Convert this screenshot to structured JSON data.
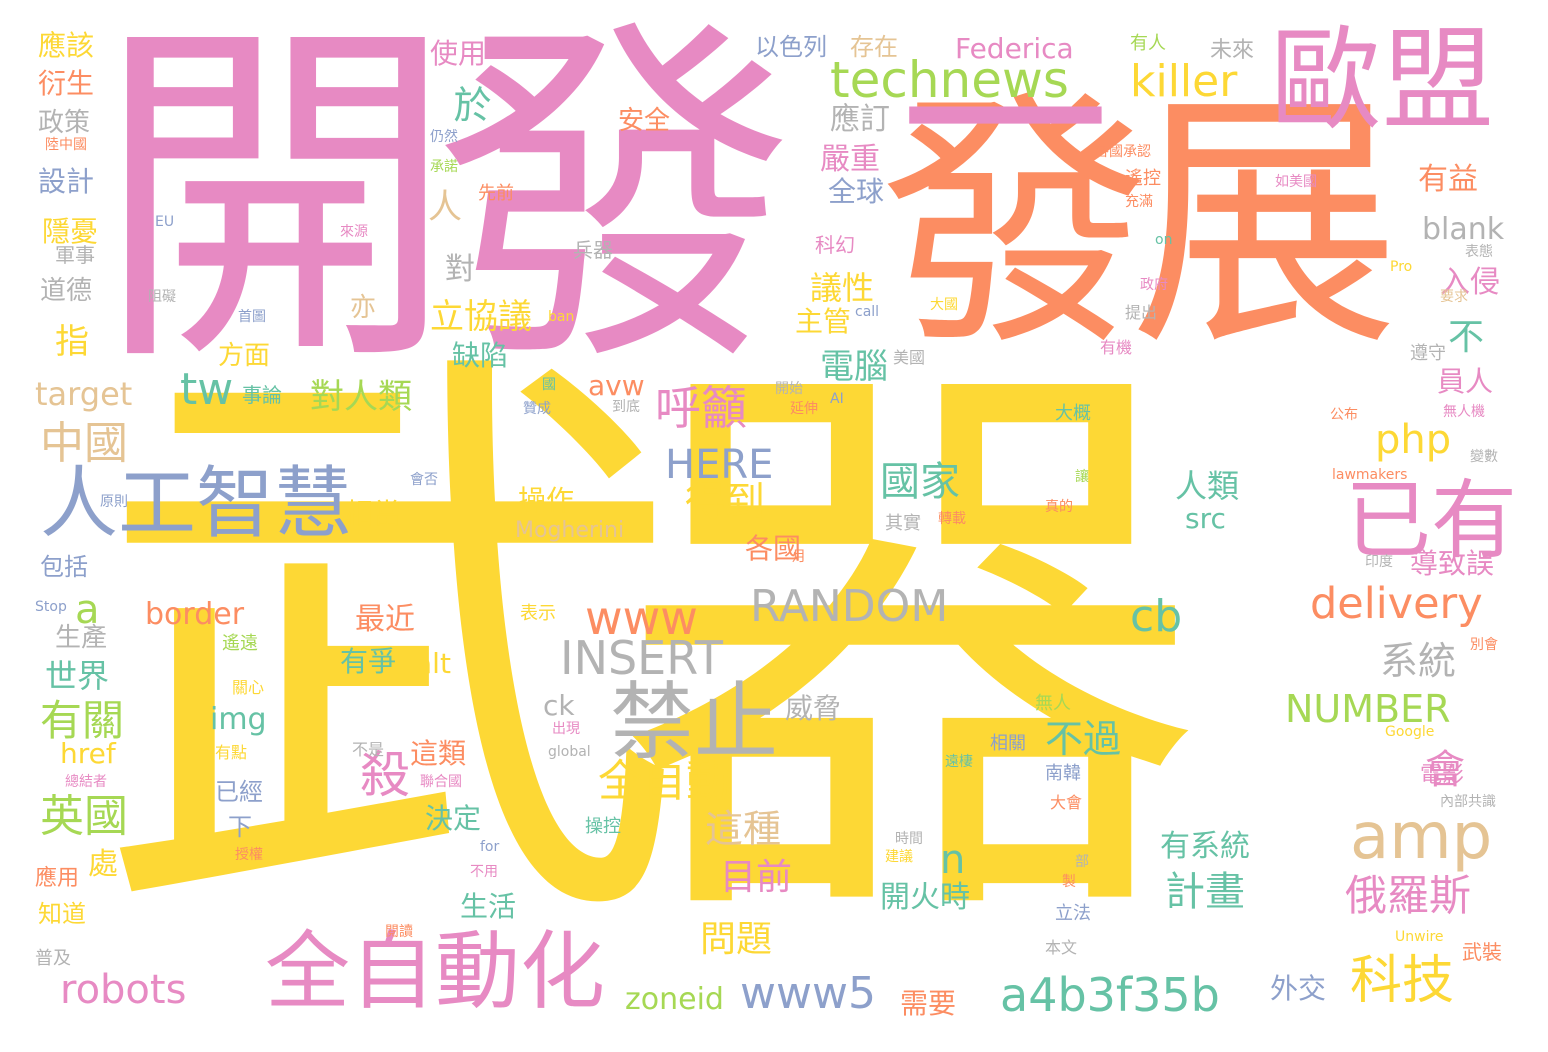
{
  "palette": {
    "yellow": "#fdd835",
    "pink": "#e78ac3",
    "orange": "#fc8d62",
    "green": "#a6d854",
    "teal": "#66c2a5",
    "blue": "#8da0cb",
    "tan": "#e5c494",
    "gray": "#b3b3b3"
  },
  "words": [
    {
      "text": "武器",
      "color": "yellow"
    },
    {
      "text": "開發",
      "color": "pink"
    },
    {
      "text": "發展",
      "color": "orange"
    },
    {
      "text": "一",
      "color": "pink"
    },
    {
      "text": "歐盟",
      "color": "pink"
    },
    {
      "text": "technews",
      "color": "green"
    },
    {
      "text": "killer",
      "color": "yellow"
    },
    {
      "text": "人工智慧",
      "color": "blue"
    },
    {
      "text": "已有",
      "color": "pink"
    },
    {
      "text": "全自動化",
      "color": "pink"
    },
    {
      "text": "amp",
      "color": "tan"
    },
    {
      "text": "禁止",
      "color": "gray"
    },
    {
      "text": "RANDOM",
      "color": "gray"
    },
    {
      "text": "INSERT",
      "color": "gray"
    },
    {
      "text": "a4b3f35b",
      "color": "teal"
    },
    {
      "text": "www5",
      "color": "blue"
    },
    {
      "text": "www",
      "color": "orange"
    },
    {
      "text": "delivery",
      "color": "orange"
    },
    {
      "text": "php",
      "color": "yellow"
    },
    {
      "text": "NUMBER",
      "color": "green"
    },
    {
      "text": "HERE",
      "color": "blue"
    },
    {
      "text": "呼籲",
      "color": "pink"
    },
    {
      "text": "科技",
      "color": "yellow"
    },
    {
      "text": "全自動",
      "color": "yellow"
    },
    {
      "text": "國家",
      "color": "teal"
    },
    {
      "text": "得到",
      "color": "yellow"
    },
    {
      "text": "cb",
      "color": "teal"
    },
    {
      "text": "tw",
      "color": "teal"
    },
    {
      "text": "robots",
      "color": "pink"
    },
    {
      "text": "中國",
      "color": "tan"
    },
    {
      "text": "有關",
      "color": "green"
    },
    {
      "text": "英國",
      "color": "green"
    },
    {
      "text": "殺",
      "color": "pink"
    },
    {
      "text": "俄羅斯",
      "color": "pink"
    },
    {
      "text": "計畫",
      "color": "teal"
    },
    {
      "text": "blank",
      "color": "gray"
    },
    {
      "text": "border",
      "color": "orange"
    },
    {
      "text": "target",
      "color": "tan"
    },
    {
      "text": "系統",
      "color": "gray"
    },
    {
      "text": "zoneid",
      "color": "green"
    },
    {
      "text": "會",
      "color": "pink"
    },
    {
      "text": "不過",
      "color": "teal"
    },
    {
      "text": "這種",
      "color": "tan"
    },
    {
      "text": "目前",
      "color": "pink"
    },
    {
      "text": "問題",
      "color": "yellow"
    },
    {
      "text": "n",
      "color": "teal"
    },
    {
      "text": "a",
      "color": "green"
    },
    {
      "text": "於",
      "color": "teal"
    },
    {
      "text": "電腦",
      "color": "teal"
    },
    {
      "text": "對人類",
      "color": "green"
    },
    {
      "text": "人類",
      "color": "teal"
    },
    {
      "text": "src",
      "color": "teal"
    },
    {
      "text": "有系統",
      "color": "teal"
    },
    {
      "text": "開火時",
      "color": "teal"
    },
    {
      "text": "Federica",
      "color": "pink"
    },
    {
      "text": "img",
      "color": "teal"
    },
    {
      "text": "href",
      "color": "yellow"
    },
    {
      "text": "alt",
      "color": "yellow"
    },
    {
      "text": "avw",
      "color": "orange"
    },
    {
      "text": "ck",
      "color": "gray"
    },
    {
      "text": "立協議",
      "color": "yellow"
    },
    {
      "text": "議性",
      "color": "yellow"
    },
    {
      "text": "全球",
      "color": "blue"
    },
    {
      "text": "應訂",
      "color": "gray"
    },
    {
      "text": "嚴重",
      "color": "pink"
    },
    {
      "text": "有益",
      "color": "orange"
    },
    {
      "text": "入侵",
      "color": "pink"
    },
    {
      "text": "操作",
      "color": "yellow"
    },
    {
      "text": "相當",
      "color": "yellow"
    },
    {
      "text": "各國",
      "color": "orange"
    },
    {
      "text": "威脅",
      "color": "gray"
    },
    {
      "text": "最近",
      "color": "orange"
    },
    {
      "text": "有爭",
      "color": "teal"
    },
    {
      "text": "世界",
      "color": "teal"
    },
    {
      "text": "生產",
      "color": "gray"
    },
    {
      "text": "需要",
      "color": "orange"
    },
    {
      "text": "生活",
      "color": "teal"
    },
    {
      "text": "決定",
      "color": "teal"
    },
    {
      "text": "這類",
      "color": "orange"
    },
    {
      "text": "外交",
      "color": "blue"
    },
    {
      "text": "主管",
      "color": "yellow"
    },
    {
      "text": "方面",
      "color": "yellow"
    },
    {
      "text": "缺陷",
      "color": "teal"
    },
    {
      "text": "導致誤",
      "color": "pink"
    },
    {
      "text": "員人",
      "color": "pink"
    },
    {
      "text": "應該",
      "color": "yellow"
    },
    {
      "text": "衍生",
      "color": "orange"
    },
    {
      "text": "政策",
      "color": "gray"
    },
    {
      "text": "設計",
      "color": "blue"
    },
    {
      "text": "隱憂",
      "color": "yellow"
    },
    {
      "text": "道德",
      "color": "gray"
    },
    {
      "text": "使用",
      "color": "pink"
    },
    {
      "text": "安全",
      "color": "orange"
    },
    {
      "text": "存在",
      "color": "tan"
    },
    {
      "text": "以色列",
      "color": "blue"
    },
    {
      "text": "未來",
      "color": "gray"
    },
    {
      "text": "有人",
      "color": "green"
    },
    {
      "text": "包括",
      "color": "blue"
    },
    {
      "text": "下",
      "color": "blue"
    },
    {
      "text": "已經",
      "color": "blue"
    },
    {
      "text": "知道",
      "color": "yellow"
    },
    {
      "text": "應用",
      "color": "orange"
    },
    {
      "text": "普及",
      "color": "gray"
    },
    {
      "text": "電影",
      "color": "pink"
    },
    {
      "text": "科幻",
      "color": "pink"
    },
    {
      "text": "Mogherini",
      "color": "tan"
    },
    {
      "text": "人",
      "color": "tan"
    },
    {
      "text": "對",
      "color": "gray"
    },
    {
      "text": "亦",
      "color": "tan"
    },
    {
      "text": "指",
      "color": "yellow"
    },
    {
      "text": "不",
      "color": "teal"
    },
    {
      "text": "處",
      "color": "yellow"
    },
    {
      "text": "事論",
      "color": "teal"
    },
    {
      "text": "軍事",
      "color": "gray"
    },
    {
      "text": "兵器",
      "color": "gray"
    },
    {
      "text": "Stop",
      "color": "blue"
    },
    {
      "text": "EU",
      "color": "blue"
    },
    {
      "text": "Google",
      "color": "yellow"
    },
    {
      "text": "Unwire",
      "color": "yellow"
    },
    {
      "text": "lawmakers",
      "color": "orange"
    },
    {
      "text": "global",
      "color": "gray"
    },
    {
      "text": "for",
      "color": "blue"
    },
    {
      "text": "on",
      "color": "teal"
    },
    {
      "text": "Pro",
      "color": "yellow"
    },
    {
      "text": "AI",
      "color": "blue"
    },
    {
      "text": "ban",
      "color": "yellow"
    },
    {
      "text": "call",
      "color": "blue"
    },
    {
      "text": "武裝",
      "color": "orange"
    },
    {
      "text": "本文",
      "color": "gray"
    },
    {
      "text": "立法",
      "color": "blue"
    },
    {
      "text": "南韓",
      "color": "blue"
    },
    {
      "text": "相關",
      "color": "blue"
    },
    {
      "text": "無人",
      "color": "green"
    },
    {
      "text": "大概",
      "color": "teal"
    },
    {
      "text": "大會",
      "color": "orange"
    },
    {
      "text": "遙控",
      "color": "orange"
    },
    {
      "text": "有機",
      "color": "pink"
    },
    {
      "text": "提出",
      "color": "gray"
    },
    {
      "text": "政府",
      "color": "pink"
    },
    {
      "text": "遵守",
      "color": "gray"
    },
    {
      "text": "無人機",
      "color": "pink"
    },
    {
      "text": "公布",
      "color": "orange"
    },
    {
      "text": "變數",
      "color": "gray"
    },
    {
      "text": "印度",
      "color": "gray"
    },
    {
      "text": "表示",
      "color": "yellow"
    },
    {
      "text": "遙遠",
      "color": "green"
    },
    {
      "text": "關心",
      "color": "yellow"
    },
    {
      "text": "有點",
      "color": "yellow"
    },
    {
      "text": "總結者",
      "color": "pink"
    },
    {
      "text": "授權",
      "color": "orange"
    },
    {
      "text": "聯合國",
      "color": "pink"
    },
    {
      "text": "不是",
      "color": "gray"
    },
    {
      "text": "出現",
      "color": "pink"
    },
    {
      "text": "操控",
      "color": "teal"
    },
    {
      "text": "不用",
      "color": "pink"
    },
    {
      "text": "閱讀",
      "color": "orange"
    },
    {
      "text": "時間",
      "color": "gray"
    },
    {
      "text": "建議",
      "color": "yellow"
    },
    {
      "text": "其實",
      "color": "gray"
    },
    {
      "text": "轉載",
      "color": "orange"
    },
    {
      "text": "美國",
      "color": "gray"
    },
    {
      "text": "開始",
      "color": "gray"
    },
    {
      "text": "延伸",
      "color": "orange"
    },
    {
      "text": "到底",
      "color": "gray"
    },
    {
      "text": "贊成",
      "color": "blue"
    },
    {
      "text": "國",
      "color": "teal"
    },
    {
      "text": "首圖",
      "color": "blue"
    },
    {
      "text": "阻礙",
      "color": "gray"
    },
    {
      "text": "原則",
      "color": "blue"
    },
    {
      "text": "會否",
      "color": "blue"
    },
    {
      "text": "來源",
      "color": "pink"
    },
    {
      "text": "承諾",
      "color": "green"
    },
    {
      "text": "先前",
      "color": "orange"
    },
    {
      "text": "陸中國",
      "color": "orange"
    },
    {
      "text": "仍然",
      "color": "blue"
    },
    {
      "text": "各國承認",
      "color": "orange"
    },
    {
      "text": "如美國",
      "color": "pink"
    },
    {
      "text": "大國",
      "color": "yellow"
    },
    {
      "text": "充滿",
      "color": "orange"
    },
    {
      "text": "表態",
      "color": "gray"
    },
    {
      "text": "要求",
      "color": "tan"
    },
    {
      "text": "月",
      "color": "orange"
    },
    {
      "text": "別會",
      "color": "orange"
    },
    {
      "text": "內部共識",
      "color": "gray"
    },
    {
      "text": "遠棲",
      "color": "teal"
    },
    {
      "text": "讓",
      "color": "green"
    },
    {
      "text": "部",
      "color": "gray"
    },
    {
      "text": "製",
      "color": "orange"
    },
    {
      "text": "真的",
      "color": "orange"
    }
  ]
}
